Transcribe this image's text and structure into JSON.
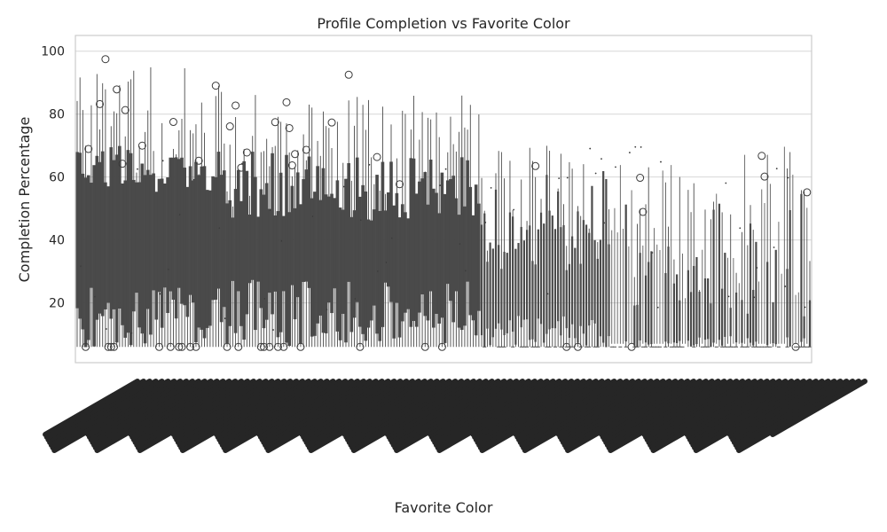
{
  "chart_data": {
    "type": "box",
    "title": "Profile Completion vs Favorite Color",
    "xlabel": "Favorite Color",
    "ylabel": "Completion Percentage",
    "ylim": [
      1,
      105
    ],
    "y_ticks": [
      20,
      40,
      60,
      80,
      100
    ],
    "grid": true,
    "legend": "none",
    "box_color": "#4a4a4a",
    "outlier_color": "#3a3a3a",
    "category_count": 120,
    "x_tick_labels_note_removed": true,
    "summary": {
      "min_completion": 6,
      "max_completion": 100,
      "dense_region": "left two thirds",
      "sparse_region": "right third"
    }
  }
}
